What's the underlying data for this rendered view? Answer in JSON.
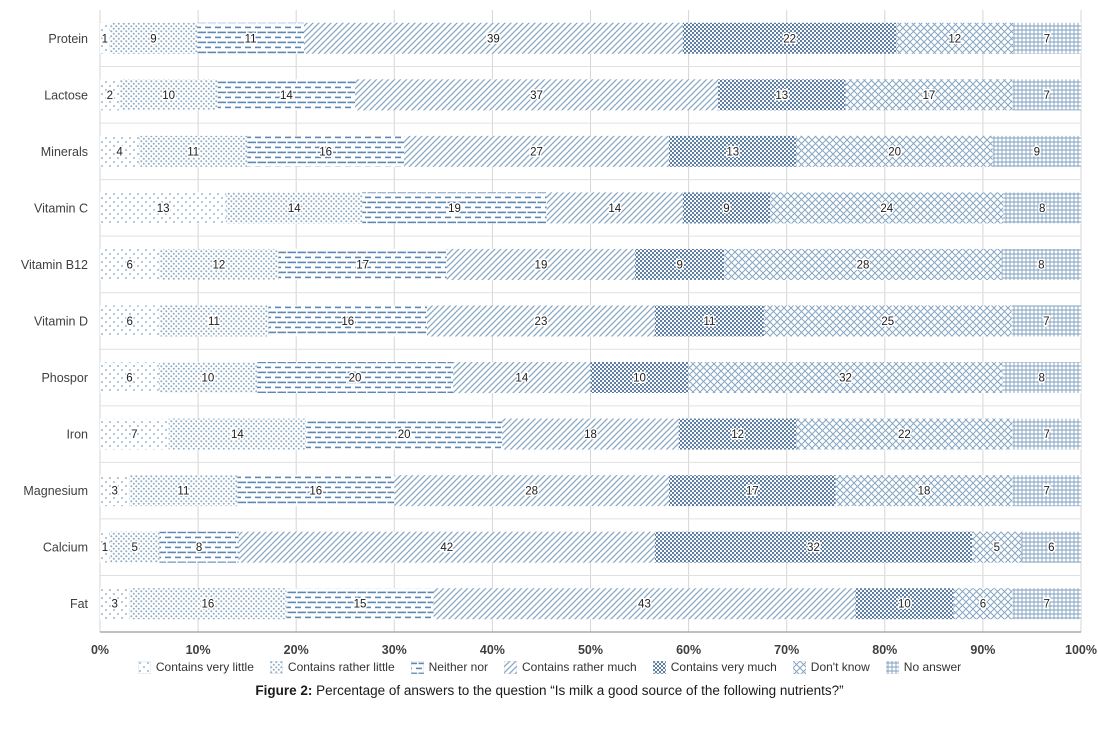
{
  "chart_data": {
    "type": "bar",
    "orientation": "horizontal-stacked",
    "title": "",
    "categories": [
      "Protein",
      "Lactose",
      "Minerals",
      "Vitamin C",
      "Vitamin B12",
      "Vitamin D",
      "Phospor",
      "Iron",
      "Magnesium",
      "Calcium",
      "Fat"
    ],
    "series": [
      {
        "name": "Contains very little",
        "pattern": "dots-sparse",
        "color": "#9db7cd",
        "values": [
          1,
          2,
          4,
          13,
          6,
          6,
          6,
          7,
          3,
          1,
          3
        ]
      },
      {
        "name": "Contains rather little",
        "pattern": "dots-dense",
        "color": "#8fadc6",
        "values": [
          9,
          10,
          11,
          14,
          12,
          11,
          10,
          14,
          11,
          5,
          16
        ]
      },
      {
        "name": "Neither nor",
        "pattern": "dash-horizontal",
        "color": "#5b88b5",
        "values": [
          11,
          14,
          16,
          19,
          17,
          16,
          20,
          20,
          16,
          8,
          15
        ]
      },
      {
        "name": "Contains rather much",
        "pattern": "diagonal",
        "color": "#89a8c4",
        "values": [
          39,
          37,
          27,
          14,
          19,
          23,
          14,
          18,
          28,
          42,
          43
        ]
      },
      {
        "name": "Contains very much",
        "pattern": "dots-heavy",
        "color": "#54779c",
        "values": [
          22,
          13,
          13,
          9,
          9,
          11,
          10,
          12,
          17,
          32,
          10
        ]
      },
      {
        "name": "Don't know",
        "pattern": "diamond-crosshatch",
        "color": "#86a6c3",
        "values": [
          12,
          17,
          20,
          24,
          28,
          25,
          32,
          22,
          18,
          5,
          6
        ]
      },
      {
        "name": "No answer",
        "pattern": "grid",
        "color": "#7e9fbf",
        "values": [
          7,
          7,
          9,
          8,
          8,
          7,
          8,
          7,
          7,
          6,
          7
        ]
      }
    ],
    "x_axis": {
      "min": 0,
      "max": 100,
      "ticks": [
        "0%",
        "10%",
        "20%",
        "30%",
        "40%",
        "50%",
        "60%",
        "70%",
        "80%",
        "90%",
        "100%"
      ]
    },
    "grid": true,
    "legend_position": "bottom"
  },
  "caption": {
    "label": "Figure 2:",
    "text": " Percentage of answers to the question “Is milk a good source of the following nutrients?”"
  },
  "colors": {
    "gridline": "#d6d6d6",
    "row_gridline": "#e0e0e0",
    "axis_line": "#9b9b9b",
    "axis_text": "#3f3f3f",
    "value_label": "#1c1c1c"
  }
}
